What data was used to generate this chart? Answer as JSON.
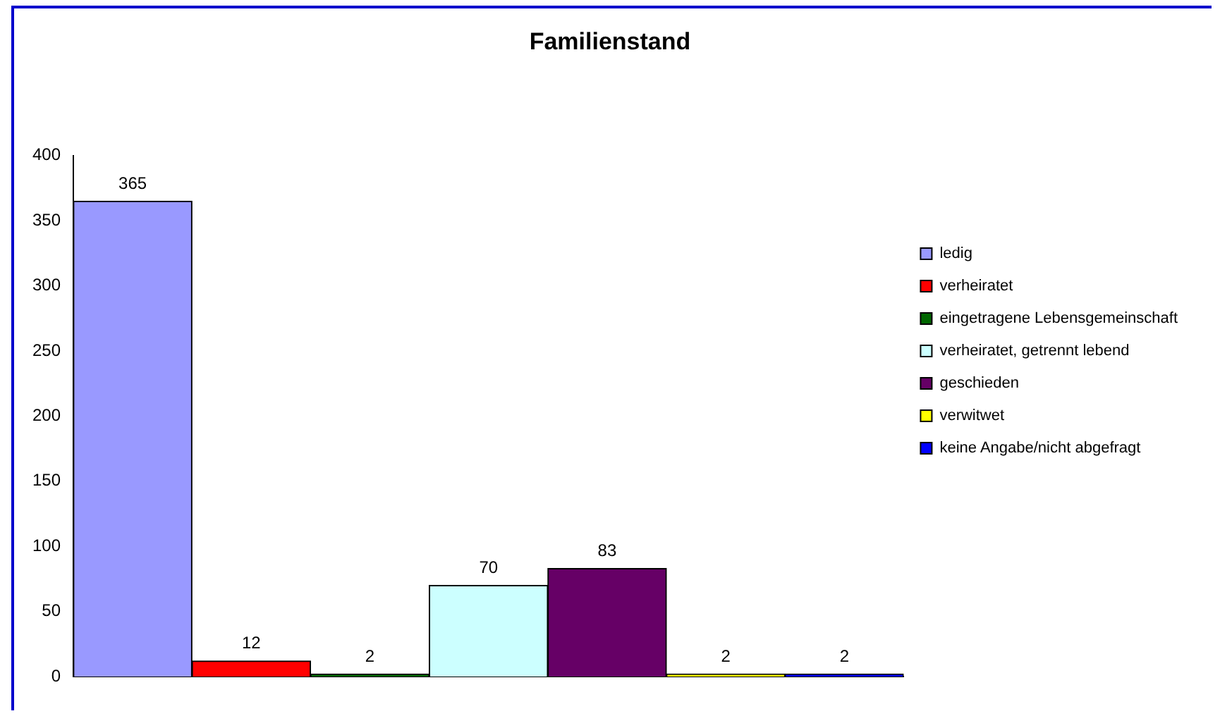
{
  "chart_data": {
    "type": "bar",
    "title": "Familienstand",
    "categories": [
      null
    ],
    "series": [
      {
        "name": "ledig",
        "color": "#9999ff",
        "values": [
          365
        ]
      },
      {
        "name": "verheiratet",
        "color": "#ff0000",
        "values": [
          12
        ]
      },
      {
        "name": "eingetragene Lebensgemeinschaft",
        "color": "#006600",
        "values": [
          2
        ]
      },
      {
        "name": "verheiratet, getrennt lebend",
        "color": "#ccffff",
        "values": [
          70
        ]
      },
      {
        "name": "geschieden",
        "color": "#660066",
        "values": [
          83
        ]
      },
      {
        "name": "verwitwet",
        "color": "#ffff00",
        "values": [
          2
        ]
      },
      {
        "name": "keine Angabe/nicht abgefragt",
        "color": "#0000ff",
        "values": [
          2
        ]
      }
    ],
    "ylim": [
      0,
      400
    ],
    "yticks": [
      0,
      50,
      100,
      150,
      200,
      250,
      300,
      350,
      400
    ],
    "grid": false,
    "legend": "right",
    "data_labels": true
  }
}
